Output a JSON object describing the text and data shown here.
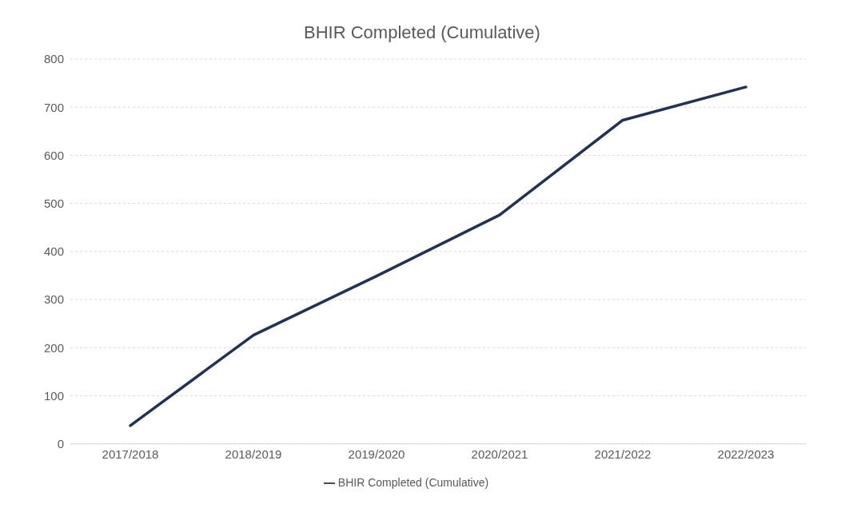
{
  "chart_data": {
    "type": "line",
    "title": "BHIR Completed (Cumulative)",
    "categories": [
      "2017/2018",
      "2018/2019",
      "2019/2020",
      "2020/2021",
      "2021/2022",
      "2022/2023"
    ],
    "series": [
      {
        "name": "BHIR Completed (Cumulative)",
        "color": "#1f3358",
        "values": [
          38,
          226,
          349,
          476,
          673,
          742
        ]
      }
    ],
    "ylim": [
      0,
      800
    ],
    "yticks": [
      0,
      100,
      200,
      300,
      400,
      500,
      600,
      700,
      800
    ],
    "grid": "y",
    "legend": "bottom",
    "marker": "none",
    "line_style": "solid"
  }
}
